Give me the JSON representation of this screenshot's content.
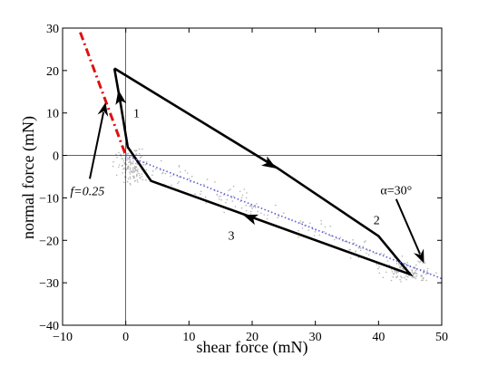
{
  "chart_data": {
    "type": "line",
    "xlabel": "shear force (mN)",
    "ylabel": "normal force (mN)",
    "xlim": [
      -10,
      50
    ],
    "ylim": [
      -40,
      30
    ],
    "xticks": [
      -10,
      0,
      10,
      20,
      30,
      40,
      50
    ],
    "yticks": [
      -40,
      -30,
      -20,
      -10,
      0,
      10,
      20,
      30
    ],
    "grid": false,
    "zero_lines": true,
    "series": [
      {
        "style": "solid-black-thick",
        "color": "#000000",
        "x": [
          -1.8,
          24,
          40,
          45,
          4,
          0.3,
          -0.8,
          -1.8
        ],
        "y": [
          20.5,
          -3,
          -19,
          -28,
          -6,
          2,
          12,
          20.5
        ]
      },
      {
        "style": "dash-dot-red",
        "color": "#e01010",
        "x": [
          -7.2,
          0
        ],
        "y": [
          29,
          0
        ]
      },
      {
        "style": "dotted-blue",
        "color": "#5a5ad8",
        "x": [
          0,
          50
        ],
        "y": [
          0,
          -29
        ]
      }
    ],
    "scatter_cloud_color": "#b5b5b5",
    "path_arrows": [
      {
        "x": 23,
        "y": -2.3
      },
      {
        "x": 19.5,
        "y": -14.5
      },
      {
        "x": -1,
        "y": 14
      }
    ],
    "annotations": [
      {
        "text": "1",
        "x": 1.2,
        "y": 9
      },
      {
        "text": "2",
        "x": 39.2,
        "y": -16.2
      },
      {
        "text": "3",
        "x": 16.2,
        "y": -19.8
      },
      {
        "text": "f=0.25",
        "x": -8.8,
        "y": -9.4,
        "italic": true
      },
      {
        "text": "α=30°",
        "x": 40.3,
        "y": -9.2
      }
    ],
    "pointer_arrows": [
      {
        "from": [
          -5.7,
          -5.5
        ],
        "to": [
          -3.2,
          12.5
        ]
      },
      {
        "from": [
          42.8,
          -10.3
        ],
        "to": [
          47.2,
          -25.4
        ]
      }
    ]
  }
}
